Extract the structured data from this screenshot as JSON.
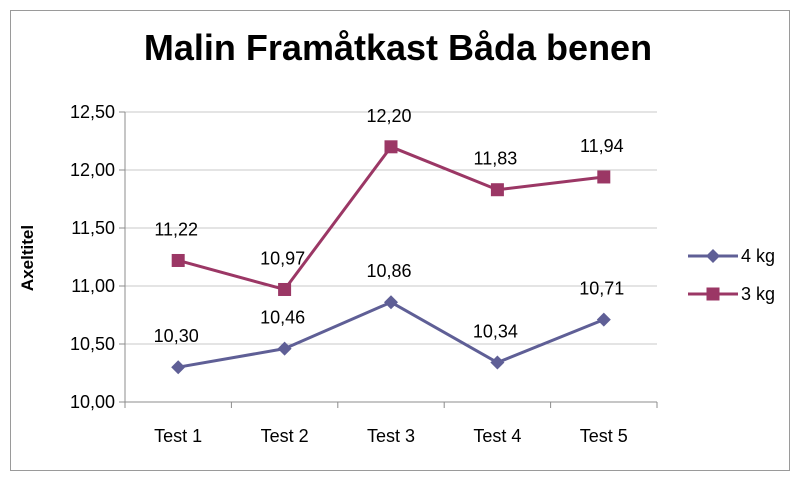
{
  "chart_data": {
    "type": "line",
    "title": "Malin Framåtkast Båda benen",
    "xlabel": "",
    "ylabel": "Axeltitel",
    "categories": [
      "Test 1",
      "Test 2",
      "Test 3",
      "Test 4",
      "Test 5"
    ],
    "ylim": [
      10.0,
      12.5
    ],
    "yticks": [
      10.0,
      10.5,
      11.0,
      11.5,
      12.0,
      12.5
    ],
    "ytick_labels": [
      "10,00",
      "10,50",
      "11,00",
      "11,50",
      "12,00",
      "12,50"
    ],
    "grid": true,
    "legend_position": "right",
    "series": [
      {
        "name": "4 kg",
        "color": "#5f5f96",
        "marker": "diamond",
        "values": [
          10.3,
          10.46,
          10.86,
          10.34,
          10.71
        ],
        "labels": [
          "10,30",
          "10,46",
          "10,86",
          "10,34",
          "10,71"
        ]
      },
      {
        "name": "3 kg",
        "color": "#9b3765",
        "marker": "square",
        "values": [
          11.22,
          10.97,
          12.2,
          11.83,
          11.94
        ],
        "labels": [
          "11,22",
          "10,97",
          "12,20",
          "11,83",
          "11,94"
        ]
      }
    ]
  }
}
